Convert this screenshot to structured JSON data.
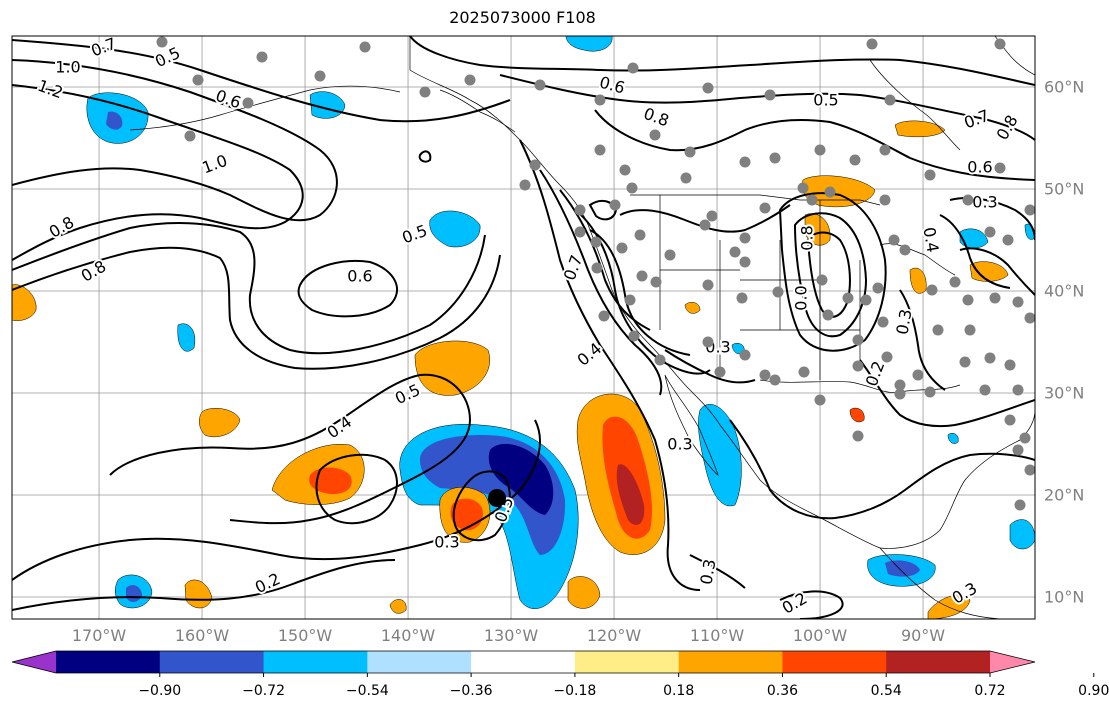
{
  "title": "2025073000 F108",
  "longitude_labels": [
    "170°W",
    "160°W",
    "150°W",
    "140°W",
    "130°W",
    "120°W",
    "110°W",
    "100°W",
    "90°W"
  ],
  "latitude_labels": [
    "60°N",
    "50°N",
    "40°N",
    "30°N",
    "20°N",
    "10°N"
  ],
  "contour_labels": [
    "0.7",
    "0.5",
    "1.0",
    "1.2",
    "0.6",
    "1.0",
    "0.8",
    "0.8",
    "0.5",
    "0.6",
    "0.7",
    "0.4",
    "0.5",
    "0.3",
    "0.2",
    "0.5",
    "0.3",
    "0.4",
    "0.6",
    "0.8",
    "0.5",
    "0.7",
    "0.8",
    "0.6",
    "0.3",
    "0.4",
    "0.3",
    "0.8",
    "0.0",
    "0.3",
    "0.2",
    "0.3",
    "0.2",
    "0.3"
  ],
  "colorbar": {
    "ticks": [
      "−0.90",
      "−0.72",
      "−0.54",
      "−0.36",
      "−0.18",
      "0.18",
      "0.36",
      "0.54",
      "0.72",
      "0.90"
    ],
    "colors": [
      "#9933cc",
      "#000080",
      "#3355cc",
      "#00bfff",
      "#b0e0ff",
      "#ffffff",
      "#ffee88",
      "#ffa500",
      "#ff4500",
      "#b22222",
      "#ff88aa"
    ]
  },
  "colors": {
    "contour": "#000000",
    "grid": "#999999",
    "coast": "#000000",
    "station_marker": "#808080",
    "storm_marker": "#000000"
  }
}
